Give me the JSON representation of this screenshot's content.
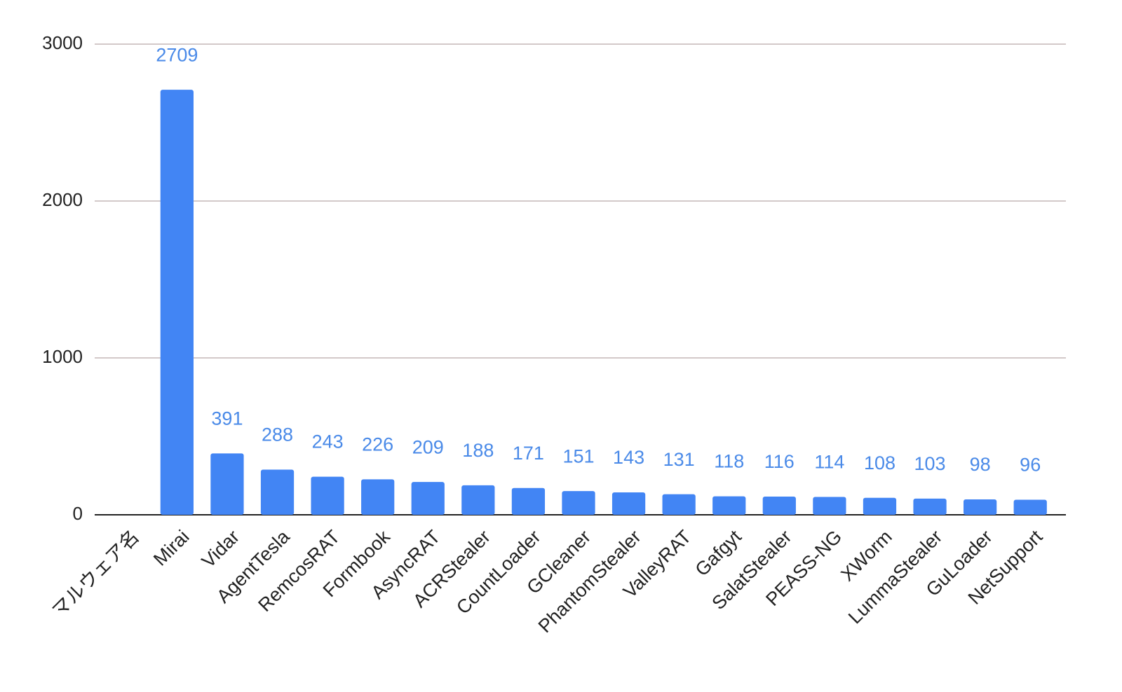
{
  "chart_data": {
    "type": "bar",
    "categories": [
      "マルウェア名",
      "Mirai",
      "Vidar",
      "AgentTesla",
      "RemcosRAT",
      "Formbook",
      "AsyncRAT",
      "ACRStealer",
      "CountLoader",
      "GCleaner",
      "PhantomStealer",
      "ValleyRAT",
      "Gafgyt",
      "SalatStealer",
      "PEASS-NG",
      "XWorm",
      "LummaStealer",
      "GuLoader",
      "NetSupport"
    ],
    "values": [
      null,
      2709,
      391,
      288,
      243,
      226,
      209,
      188,
      171,
      151,
      143,
      131,
      118,
      116,
      114,
      108,
      103,
      98,
      96
    ],
    "color": "#4285f4",
    "ylim": [
      0,
      3000
    ],
    "yticks": [
      0,
      1000,
      2000,
      3000
    ],
    "grid": true
  }
}
